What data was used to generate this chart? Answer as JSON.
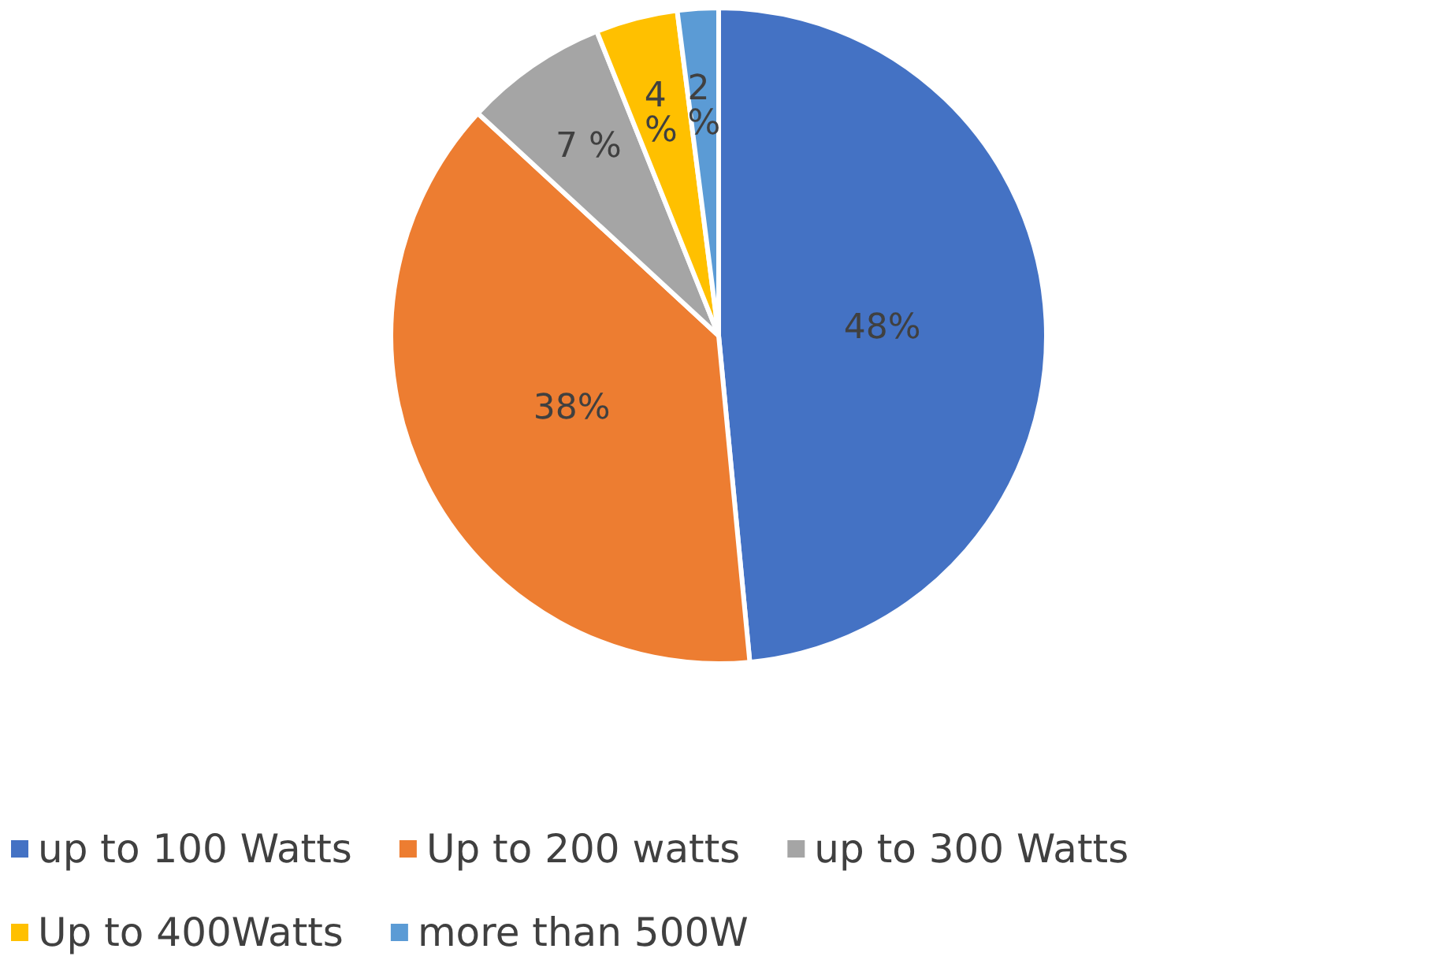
{
  "chart_data": {
    "type": "pie",
    "categories": [
      "up to 100 Watts",
      "Up to 200 watts",
      "up to 300 Watts",
      "Up to 400Watts",
      "more than 500W"
    ],
    "values": [
      48,
      38,
      7,
      4,
      2
    ],
    "colors": [
      "#4472c4",
      "#ed7d31",
      "#a5a5a5",
      "#ffc000",
      "#5b9bd5"
    ],
    "value_labels": [
      "48%",
      "38%",
      "7 %",
      "4 %",
      "2 %"
    ],
    "legend": "bottom"
  }
}
